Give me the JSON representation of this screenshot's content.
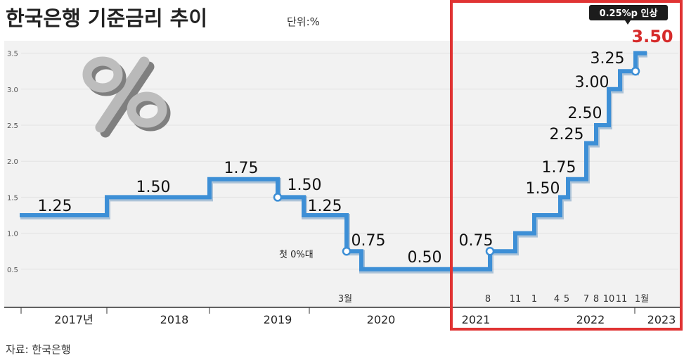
{
  "header": {
    "title": "한국은행 기준금리 추이",
    "unit": "단위:%"
  },
  "source": "자료: 한국은행",
  "colors": {
    "line": "#3d8fd6",
    "highlight": "#d62b2b",
    "frame": "#e03333",
    "badge_bg": "#1c1c1c",
    "grid": "#e2e2e2",
    "background": "#f2f2f2"
  },
  "decoration": {
    "icon": "percent-icon"
  },
  "chart_data": {
    "type": "line",
    "step": true,
    "title": "한국은행 기준금리 추이",
    "unit": "단위:%",
    "ylim": [
      0,
      3.5
    ],
    "yticks": [
      "0.5",
      "1.0",
      "1.5",
      "2.0",
      "2.5",
      "3.0",
      "3.5"
    ],
    "series": [
      {
        "values": [
          1.25,
          1.5,
          1.75,
          1.5,
          1.25,
          0.75,
          0.5,
          0.75,
          1.0,
          1.25,
          1.5,
          1.75,
          2.25,
          2.5,
          3.0,
          3.25,
          3.5
        ]
      }
    ],
    "point_labels": [
      "1.25",
      "1.50",
      "1.75",
      "1.50",
      "1.25",
      "0.75",
      "0.50",
      "0.75",
      "",
      "",
      "1.50",
      "1.75",
      "2.25",
      "2.50",
      "3.00",
      "3.25",
      "3.50"
    ],
    "years": [
      "2017년",
      "2018",
      "2019",
      "2020",
      "2021",
      "2022",
      "2023"
    ],
    "month_labels": [
      "3월",
      "8",
      "11",
      "1",
      "4",
      "5",
      "7",
      "8",
      "10",
      "11",
      "1월"
    ],
    "annotations": {
      "first_zero": "첫 0%대",
      "badge": "0.25%p 인상"
    },
    "highlight_value": "3.50"
  }
}
